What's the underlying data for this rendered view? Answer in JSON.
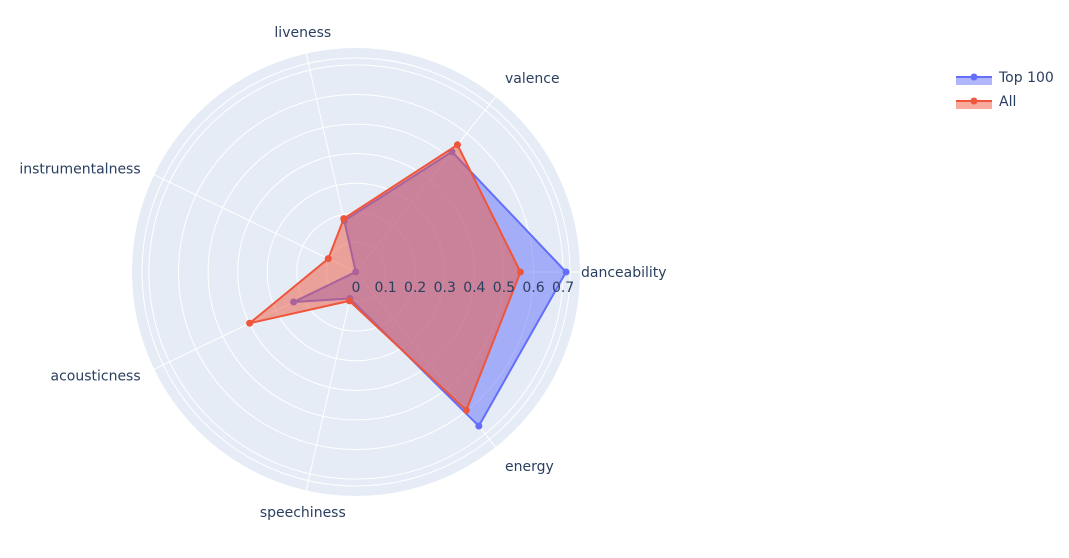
{
  "chart_data": {
    "type": "radar",
    "categories": [
      "danceability",
      "energy",
      "speechiness",
      "acousticness",
      "instrumentalness",
      "liveness",
      "valence"
    ],
    "radial_ticks": [
      "0",
      "0.1",
      "0.2",
      "0.3",
      "0.4",
      "0.5",
      "0.6",
      "0.7"
    ],
    "radial_range": [
      0,
      0.72
    ],
    "series": [
      {
        "name": "Top 100",
        "color": "#636efa",
        "fill": "rgba(99,110,250,0.5)",
        "values": [
          0.71,
          0.666,
          0.092,
          0.234,
          0.001,
          0.178,
          0.52
        ]
      },
      {
        "name": "All",
        "color": "#ef553b",
        "fill": "rgba(239,85,59,0.5)",
        "values": [
          0.556,
          0.598,
          0.1,
          0.399,
          0.104,
          0.185,
          0.55
        ]
      }
    ],
    "legend_position": "top-right",
    "grid": true
  }
}
